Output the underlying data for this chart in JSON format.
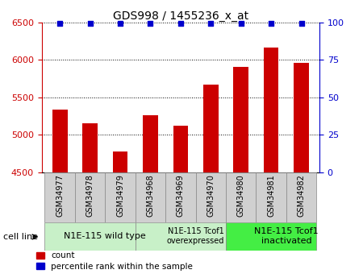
{
  "title": "GDS998 / 1455236_x_at",
  "samples": [
    "GSM34977",
    "GSM34978",
    "GSM34979",
    "GSM34968",
    "GSM34969",
    "GSM34970",
    "GSM34980",
    "GSM34981",
    "GSM34982"
  ],
  "counts": [
    5340,
    5150,
    4780,
    5260,
    5120,
    5670,
    5910,
    6160,
    5960
  ],
  "percentiles": [
    100,
    100,
    100,
    100,
    100,
    100,
    100,
    100,
    100
  ],
  "ylim_left": [
    4500,
    6500
  ],
  "ylim_right": [
    0,
    100
  ],
  "yticks_left": [
    4500,
    5000,
    5500,
    6000,
    6500
  ],
  "yticks_right": [
    0,
    25,
    50,
    75,
    100
  ],
  "count_color": "#cc0000",
  "percentile_color": "#0000cc",
  "bar_width": 0.5,
  "groups": [
    {
      "label": "N1E-115 wild type",
      "start": 0,
      "end": 3,
      "color": "#c8f0c8",
      "fontsize": 8,
      "multiline": false
    },
    {
      "label": "N1E-115 Tcof1\noverexpressed",
      "start": 3,
      "end": 6,
      "color": "#c8f0c8",
      "fontsize": 7,
      "multiline": true
    },
    {
      "label": "N1E-115 Tcof1\ninactivated",
      "start": 6,
      "end": 9,
      "color": "#44ee44",
      "fontsize": 8,
      "multiline": true
    }
  ],
  "cell_line_label": "cell line",
  "legend_count_label": "count",
  "legend_percentile_label": "percentile rank within the sample",
  "tick_label_bg": "#d0d0d0",
  "tick_label_fontsize": 7
}
